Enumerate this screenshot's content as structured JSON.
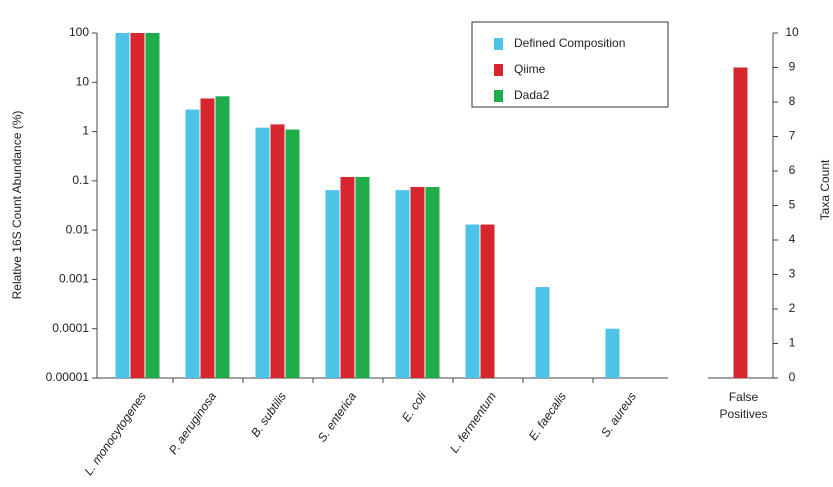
{
  "chart_data": [
    {
      "type": "bar",
      "log_scale": true,
      "ylabel": "Relative 16S Count Abundance (%)",
      "categories": [
        "L. monocytogenes",
        "P. aeruginosa",
        "B. subtilis",
        "S. enterica",
        "E. coli",
        "L. fermentum",
        "E. faecalis",
        "S. aureus"
      ],
      "series": [
        {
          "name": "Defined Composition",
          "color": "#4ec3e8",
          "values": [
            100,
            2.8,
            1.2,
            0.065,
            0.065,
            0.013,
            0.0007,
            0.0001
          ]
        },
        {
          "name": "Qiime",
          "color": "#d7262e",
          "values": [
            100,
            4.7,
            1.4,
            0.12,
            0.075,
            0.013,
            null,
            null
          ]
        },
        {
          "name": "Dada2",
          "color": "#1fad4b",
          "values": [
            100,
            5.2,
            1.1,
            0.12,
            0.075,
            null,
            null,
            null
          ]
        }
      ],
      "ylim": [
        1e-05,
        100
      ],
      "yticks": [
        1e-05,
        0.0001,
        0.001,
        0.01,
        0.1,
        1,
        10,
        100
      ],
      "legend": "upper right"
    },
    {
      "type": "bar",
      "ylabel": "Taxa Count",
      "categories": [
        "False Positives"
      ],
      "values": [
        9
      ],
      "color": "#d7262e",
      "ylim": [
        0,
        10
      ],
      "yticks": [
        0,
        1,
        2,
        3,
        4,
        5,
        6,
        7,
        8,
        9,
        10
      ],
      "axis_side": "right"
    }
  ]
}
